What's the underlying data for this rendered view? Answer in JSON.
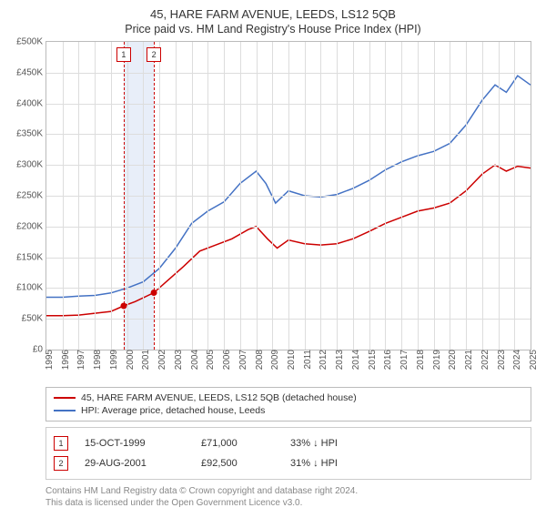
{
  "title": "45, HARE FARM AVENUE, LEEDS, LS12 5QB",
  "subtitle": "Price paid vs. HM Land Registry's House Price Index (HPI)",
  "chart": {
    "type": "line",
    "y_axis": {
      "min": 0,
      "max": 500000,
      "tick_step": 50000,
      "ticks": [
        0,
        50000,
        100000,
        150000,
        200000,
        250000,
        300000,
        350000,
        400000,
        450000,
        500000
      ],
      "tick_labels": [
        "£0",
        "£50K",
        "£100K",
        "£150K",
        "£200K",
        "£250K",
        "£300K",
        "£350K",
        "£400K",
        "£450K",
        "£500K"
      ]
    },
    "x_axis": {
      "min": 1995,
      "max": 2025,
      "ticks": [
        1995,
        1996,
        1997,
        1998,
        1999,
        2000,
        2001,
        2002,
        2003,
        2004,
        2005,
        2006,
        2007,
        2008,
        2009,
        2010,
        2011,
        2012,
        2013,
        2014,
        2015,
        2016,
        2017,
        2018,
        2019,
        2020,
        2021,
        2022,
        2023,
        2024,
        2025
      ],
      "tick_labels": [
        "1995",
        "1996",
        "1997",
        "1998",
        "1999",
        "2000",
        "2001",
        "2002",
        "2003",
        "2004",
        "2005",
        "2006",
        "2007",
        "2008",
        "2009",
        "2010",
        "2011",
        "2012",
        "2013",
        "2014",
        "2015",
        "2016",
        "2017",
        "2018",
        "2019",
        "2020",
        "2021",
        "2022",
        "2023",
        "2024",
        "2025"
      ]
    },
    "grid_color": "#dddddd",
    "border_color": "#bbbbbb",
    "background_color": "#ffffff",
    "series": [
      {
        "name": "property",
        "color": "#cc0000",
        "line_width": 1.5,
        "points": [
          [
            1995.0,
            55000
          ],
          [
            1996.0,
            55000
          ],
          [
            1997.0,
            56000
          ],
          [
            1998.0,
            59000
          ],
          [
            1999.0,
            62000
          ],
          [
            1999.79,
            71000
          ],
          [
            2000.5,
            78000
          ],
          [
            2001.66,
            92500
          ],
          [
            2002.5,
            112000
          ],
          [
            2003.5,
            135000
          ],
          [
            2004.5,
            160000
          ],
          [
            2005.5,
            170000
          ],
          [
            2006.5,
            180000
          ],
          [
            2007.5,
            195000
          ],
          [
            2008.0,
            200000
          ],
          [
            2008.7,
            180000
          ],
          [
            2009.3,
            165000
          ],
          [
            2010.0,
            178000
          ],
          [
            2011.0,
            172000
          ],
          [
            2012.0,
            170000
          ],
          [
            2013.0,
            172000
          ],
          [
            2014.0,
            180000
          ],
          [
            2015.0,
            192000
          ],
          [
            2016.0,
            205000
          ],
          [
            2017.0,
            215000
          ],
          [
            2018.0,
            225000
          ],
          [
            2019.0,
            230000
          ],
          [
            2020.0,
            238000
          ],
          [
            2021.0,
            258000
          ],
          [
            2022.0,
            285000
          ],
          [
            2022.8,
            300000
          ],
          [
            2023.5,
            290000
          ],
          [
            2024.2,
            298000
          ],
          [
            2025.0,
            295000
          ]
        ]
      },
      {
        "name": "hpi",
        "color": "#4472c4",
        "line_width": 1.5,
        "points": [
          [
            1995.0,
            85000
          ],
          [
            1996.0,
            85000
          ],
          [
            1997.0,
            87000
          ],
          [
            1998.0,
            88000
          ],
          [
            1999.0,
            92000
          ],
          [
            2000.0,
            100000
          ],
          [
            2001.0,
            110000
          ],
          [
            2002.0,
            132000
          ],
          [
            2003.0,
            165000
          ],
          [
            2004.0,
            205000
          ],
          [
            2005.0,
            225000
          ],
          [
            2006.0,
            240000
          ],
          [
            2007.0,
            270000
          ],
          [
            2008.0,
            290000
          ],
          [
            2008.6,
            270000
          ],
          [
            2009.2,
            238000
          ],
          [
            2010.0,
            258000
          ],
          [
            2011.0,
            250000
          ],
          [
            2012.0,
            248000
          ],
          [
            2013.0,
            252000
          ],
          [
            2014.0,
            262000
          ],
          [
            2015.0,
            275000
          ],
          [
            2016.0,
            292000
          ],
          [
            2017.0,
            305000
          ],
          [
            2018.0,
            315000
          ],
          [
            2019.0,
            322000
          ],
          [
            2020.0,
            335000
          ],
          [
            2021.0,
            365000
          ],
          [
            2022.0,
            405000
          ],
          [
            2022.8,
            430000
          ],
          [
            2023.5,
            418000
          ],
          [
            2024.2,
            445000
          ],
          [
            2025.0,
            430000
          ]
        ]
      }
    ],
    "markers": [
      {
        "index_label": "1",
        "x": 1999.79,
        "y": 71000,
        "color": "#cc0000"
      },
      {
        "index_label": "2",
        "x": 2001.66,
        "y": 92500,
        "color": "#cc0000"
      }
    ],
    "marker_box_top_offset": 6,
    "marker_dot_radius": 3.5
  },
  "legend": {
    "items": [
      {
        "label": "45, HARE FARM AVENUE, LEEDS, LS12 5QB (detached house)",
        "color": "#cc0000"
      },
      {
        "label": "HPI: Average price, detached house, Leeds",
        "color": "#4472c4"
      }
    ]
  },
  "transactions": [
    {
      "index_label": "1",
      "date": "15-OCT-1999",
      "price": "£71,000",
      "pct": "33% ↓ HPI"
    },
    {
      "index_label": "2",
      "date": "29-AUG-2001",
      "price": "£92,500",
      "pct": "31% ↓ HPI"
    }
  ],
  "attribution_line1": "Contains HM Land Registry data © Crown copyright and database right 2024.",
  "attribution_line2": "This data is licensed under the Open Government Licence v3.0."
}
